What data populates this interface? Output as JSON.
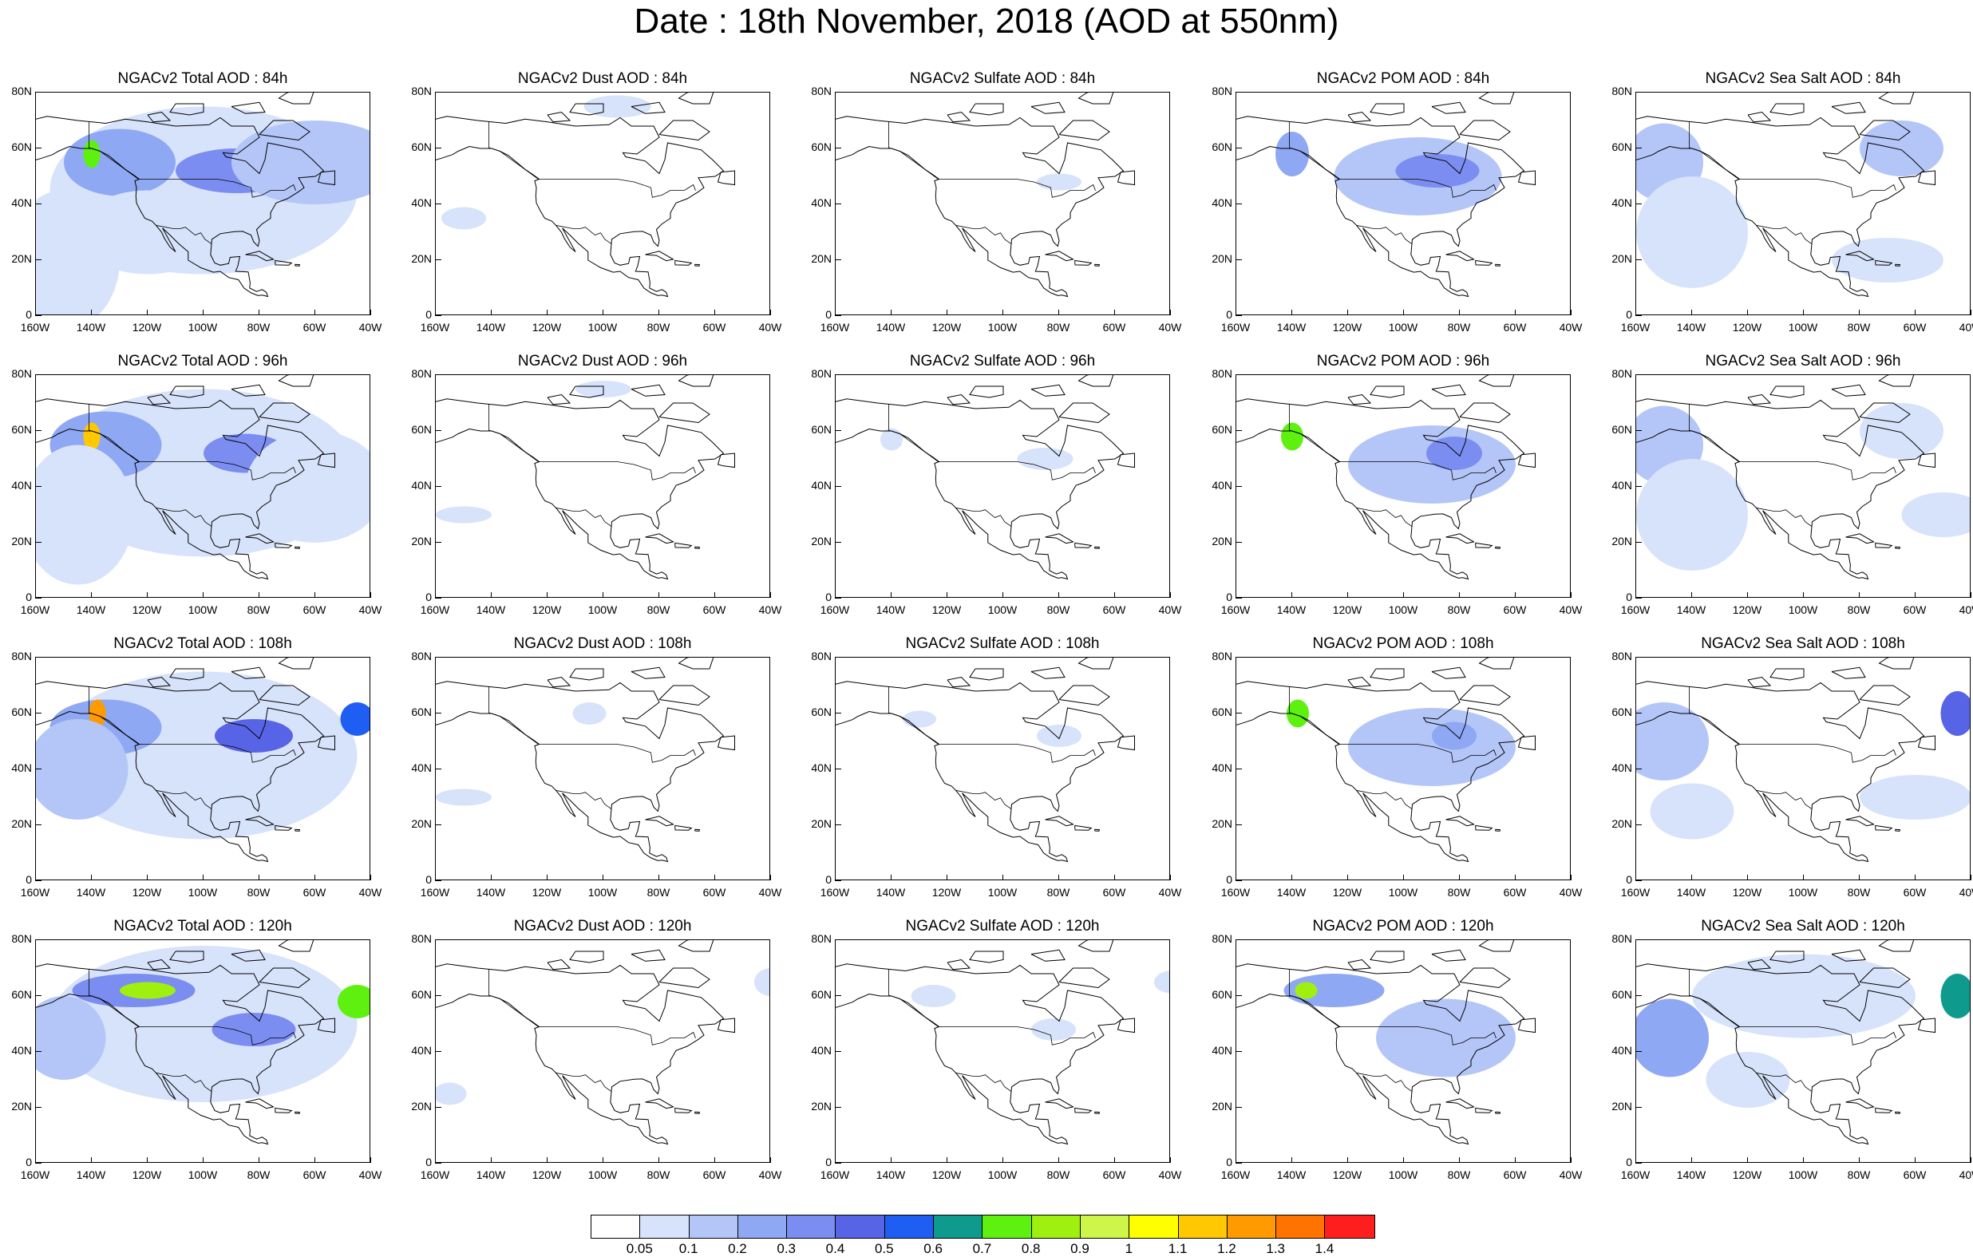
{
  "title": "Date : 18th November, 2018 (AOD at 550nm)",
  "axes": {
    "x_labels": [
      "160W",
      "140W",
      "120W",
      "100W",
      "80W",
      "60W",
      "40W"
    ],
    "y_labels": [
      "80N",
      "60N",
      "40N",
      "20N",
      "0"
    ]
  },
  "rows": [
    {
      "hour": "84h",
      "panels": [
        "NGACv2 Total AOD : 84h",
        "NGACv2 Dust AOD : 84h",
        "NGACv2 Sulfate AOD : 84h",
        "NGACv2 POM AOD : 84h",
        "NGACv2 Sea Salt AOD : 84h"
      ]
    },
    {
      "hour": "96h",
      "panels": [
        "NGACv2 Total AOD : 96h",
        "NGACv2 Dust AOD : 96h",
        "NGACv2 Sulfate AOD : 96h",
        "NGACv2 POM AOD : 96h",
        "NGACv2 Sea Salt AOD : 96h"
      ]
    },
    {
      "hour": "108h",
      "panels": [
        "NGACv2 Total AOD : 108h",
        "NGACv2 Dust AOD : 108h",
        "NGACv2 Sulfate AOD : 108h",
        "NGACv2 POM AOD : 108h",
        "NGACv2 Sea Salt AOD : 108h"
      ]
    },
    {
      "hour": "120h",
      "panels": [
        "NGACv2 Total AOD : 120h",
        "NGACv2 Dust AOD : 120h",
        "NGACv2 Sulfate AOD : 120h",
        "NGACv2 POM AOD : 120h",
        "NGACv2 Sea Salt  AOD : 120h"
      ]
    }
  ],
  "colorbar": {
    "labels": [
      "0.05",
      "0.1",
      "0.2",
      "0.3",
      "0.4",
      "0.5",
      "0.6",
      "0.7",
      "0.8",
      "0.9",
      "1",
      "1.1",
      "1.2",
      "1.3",
      "1.4"
    ],
    "colors": [
      "#ffffff",
      "#d7e3fb",
      "#b4c6f8",
      "#8fa8f3",
      "#7b8df0",
      "#5864e6",
      "#1f5ef2",
      "#0f9a8e",
      "#5ef00f",
      "#a0f00f",
      "#cdf54a",
      "#ffff00",
      "#ffc800",
      "#ff9b00",
      "#ff7300",
      "#ff1e1e"
    ]
  },
  "chart_data": {
    "type": "heatmap",
    "title": "Date : 18th November, 2018 (AOD at 550nm)",
    "xlim": [
      "160W",
      "40W"
    ],
    "ylim": [
      "0",
      "80N"
    ],
    "levels": [
      0.05,
      0.1,
      0.2,
      0.3,
      0.4,
      0.5,
      0.6,
      0.7,
      0.8,
      0.9,
      1,
      1.1,
      1.2,
      1.3,
      1.4
    ],
    "species": [
      "Total",
      "Dust",
      "Sulfate",
      "POM",
      "Sea Salt"
    ],
    "forecast_hours": [
      "84h",
      "96h",
      "108h",
      "120h"
    ]
  }
}
